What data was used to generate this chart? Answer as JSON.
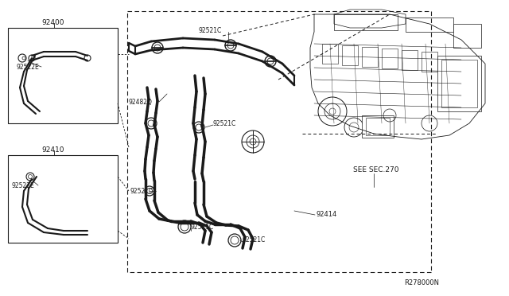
{
  "bg_color": "#ffffff",
  "line_color": "#1a1a1a",
  "gray_color": "#555555",
  "ref_code": "R278000N",
  "see_sec": "SEE SEC.270",
  "part_92400": "92400",
  "part_92410": "92410",
  "part_92522E": "92522E",
  "part_92482Q": "92482Q",
  "part_92521C": "92521C",
  "part_92414": "92414"
}
